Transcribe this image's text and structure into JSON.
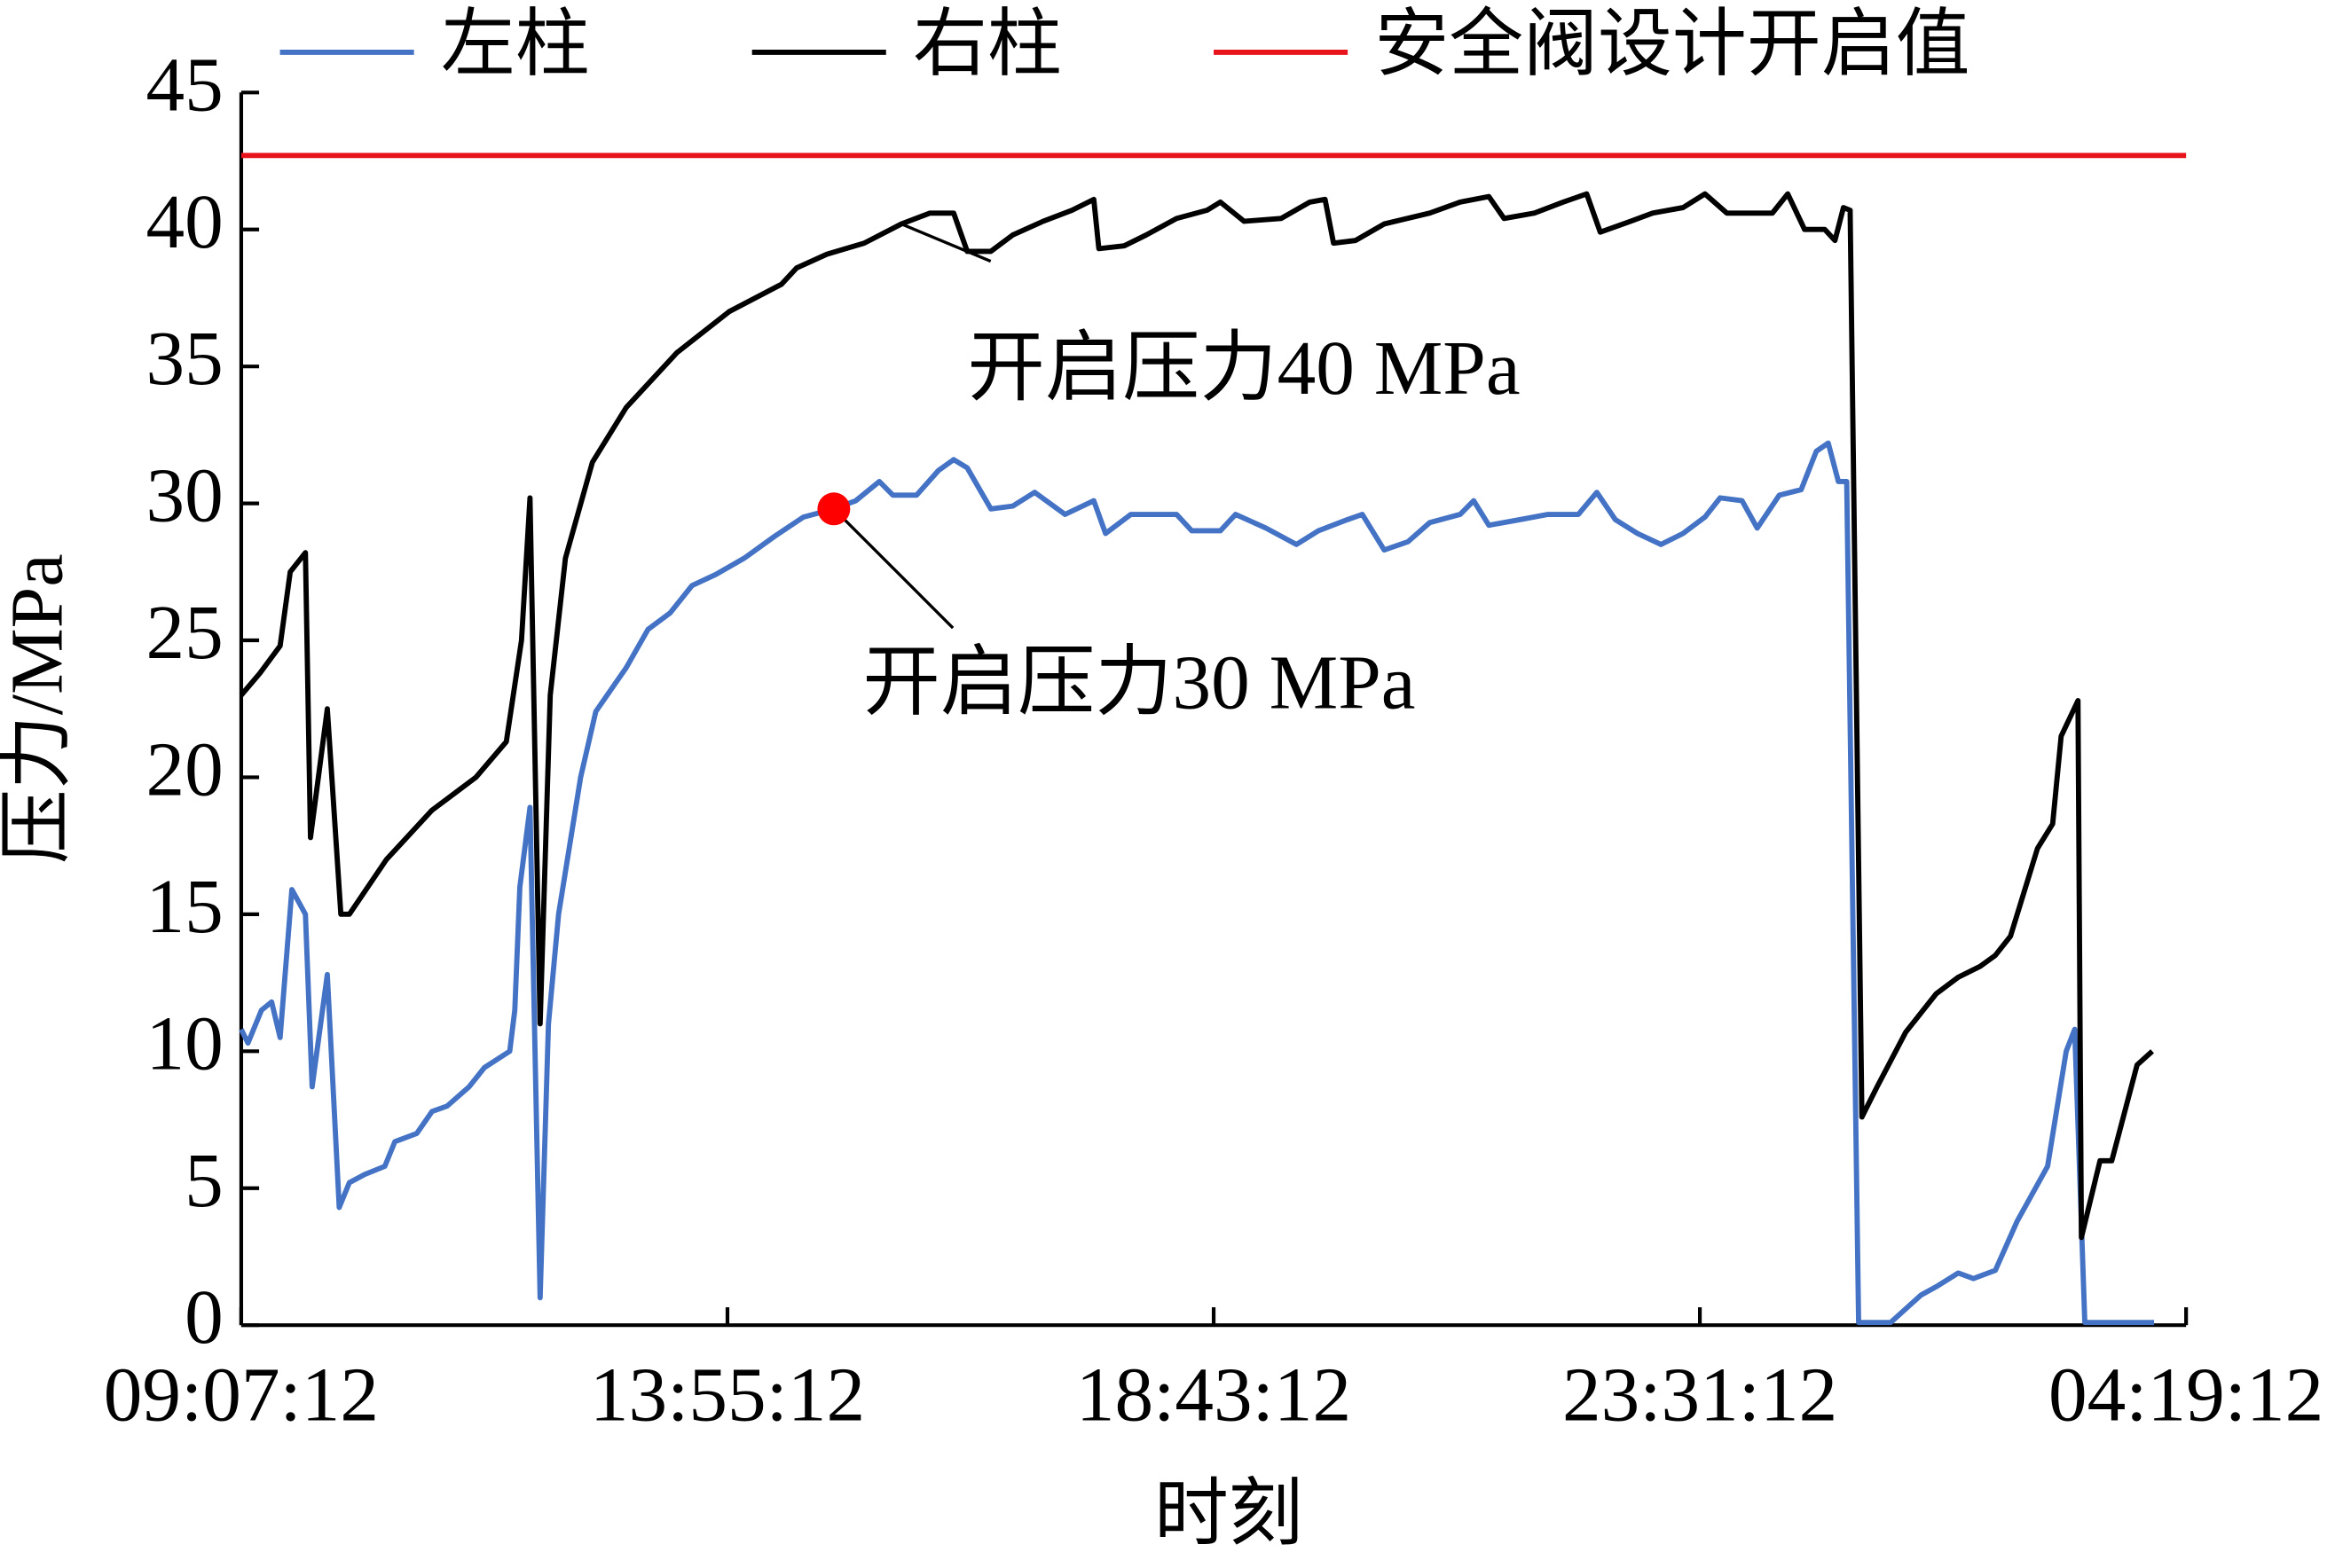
{
  "chart_data": {
    "type": "line",
    "x_label": "时刻",
    "y_label": "压力/MPa",
    "legend": "top",
    "xlim": [
      0,
      1152
    ],
    "xticks": [
      {
        "value": 0,
        "label": "09:07:12"
      },
      {
        "value": 288,
        "label": "13:55:12"
      },
      {
        "value": 576,
        "label": "18:43:12"
      },
      {
        "value": 864,
        "label": "23:31:12"
      },
      {
        "value": 1152,
        "label": "04:19:12"
      }
    ],
    "ylim": [
      0,
      45
    ],
    "yticks": [
      0,
      5,
      10,
      15,
      20,
      25,
      30,
      35,
      40,
      45
    ],
    "series": [
      {
        "name": "左柱",
        "color": "#4472c4",
        "x": [
          0,
          4,
          12,
          18,
          23,
          30,
          38,
          42,
          51,
          58,
          64,
          73,
          85,
          91,
          104,
          113,
          122,
          135,
          144,
          159,
          162,
          165,
          171,
          177,
          182,
          188,
          201,
          210,
          228,
          241,
          254,
          267,
          281,
          298,
          316,
          333,
          351,
          364,
          378,
          386,
          400,
          413,
          422,
          430,
          444,
          457,
          470,
          488,
          505,
          512,
          527,
          554,
          563,
          580,
          589,
          607,
          625,
          638,
          655,
          664,
          677,
          691,
          704,
          722,
          730,
          739,
          757,
          774,
          792,
          803,
          814,
          827,
          841,
          854,
          867,
          876,
          889,
          898,
          911,
          924,
          933,
          940,
          946,
          951,
          958,
          977,
          995,
          1004,
          1017,
          1026,
          1039,
          1052,
          1070,
          1081,
          1086,
          1092,
          1110,
          1133
        ],
        "values": [
          10.8,
          10.3,
          11.5,
          11.8,
          10.5,
          15.9,
          15,
          8.7,
          12.8,
          4.3,
          5.2,
          5.5,
          5.8,
          6.7,
          7,
          7.8,
          8,
          8.7,
          9.4,
          10,
          11.5,
          16,
          18.9,
          1,
          11,
          15,
          20,
          22.4,
          24,
          25.4,
          26,
          27,
          27.4,
          28,
          28.8,
          29.5,
          29.8,
          30.1,
          30.8,
          30.3,
          30.3,
          31.2,
          31.6,
          31.3,
          29.8,
          29.9,
          30.4,
          29.6,
          30.1,
          28.9,
          29.6,
          29.6,
          29,
          29,
          29.6,
          29.1,
          28.5,
          29,
          29.4,
          29.6,
          28.3,
          28.6,
          29.3,
          29.6,
          30.1,
          29.2,
          29.4,
          29.6,
          29.6,
          30.4,
          29.4,
          28.9,
          28.5,
          28.9,
          29.5,
          30.2,
          30.1,
          29.1,
          30.3,
          30.5,
          31.9,
          32.2,
          30.8,
          30.8,
          0.1,
          0.1,
          1.1,
          1.4,
          1.9,
          1.7,
          2,
          3.8,
          5.8,
          10,
          10.8,
          0.1,
          0.1,
          0.1
        ]
      },
      {
        "name": "右柱",
        "color": "#000000",
        "x": [
          0,
          11,
          23,
          29,
          38,
          41,
          51,
          59,
          64,
          86,
          113,
          139,
          157,
          166,
          171,
          177,
          183,
          192,
          208,
          228,
          258,
          289,
          320,
          329,
          347,
          369,
          391,
          408,
          422,
          430,
          444,
          457,
          475,
          492,
          505,
          508,
          523,
          536,
          554,
          572,
          580,
          594,
          616,
          633,
          642,
          647,
          660,
          677,
          704,
          722,
          739,
          748,
          766,
          783,
          797,
          805,
          823,
          836,
          854,
          867,
          880,
          907,
          916,
          926,
          938,
          944,
          949,
          953,
          960,
          969,
          986,
          1004,
          1017,
          1030,
          1039,
          1048,
          1064,
          1073,
          1078,
          1088,
          1090,
          1101,
          1108,
          1123,
          1132
        ],
        "values": [
          23,
          23.8,
          24.8,
          27.5,
          28.2,
          17.8,
          22.5,
          15,
          15,
          17,
          18.8,
          20,
          21.3,
          25,
          30.2,
          11,
          23,
          28,
          31.5,
          33.5,
          35.5,
          37,
          38,
          38.6,
          39.1,
          39.5,
          40.2,
          40.6,
          40.6,
          39.2,
          39.2,
          39.8,
          40.3,
          40.7,
          41.1,
          39.3,
          39.4,
          39.8,
          40.4,
          40.7,
          41,
          40.3,
          40.4,
          41,
          41.1,
          39.5,
          39.6,
          40.2,
          40.6,
          41,
          41.2,
          40.4,
          40.6,
          41,
          41.3,
          39.9,
          40.3,
          40.6,
          40.8,
          41.3,
          40.6,
          40.6,
          41.3,
          40,
          40,
          39.6,
          40.8,
          40.7,
          7.6,
          8.7,
          10.7,
          12.1,
          12.7,
          13.1,
          13.5,
          14.2,
          17.4,
          18.3,
          21.5,
          22.8,
          3.2,
          6,
          6,
          9.5,
          10
        ]
      },
      {
        "name": "安全阀设计开启值",
        "color": "#e8141c",
        "x": [
          0,
          1152
        ],
        "values": [
          42.7,
          42.7
        ]
      }
    ],
    "annotations": [
      {
        "text": "开启压力40 MPa",
        "x": 391,
        "y": 40.2
      },
      {
        "text": "开启压力30 MPa",
        "x": 351,
        "y": 29.8,
        "marker_color": "#ff0000"
      }
    ]
  }
}
